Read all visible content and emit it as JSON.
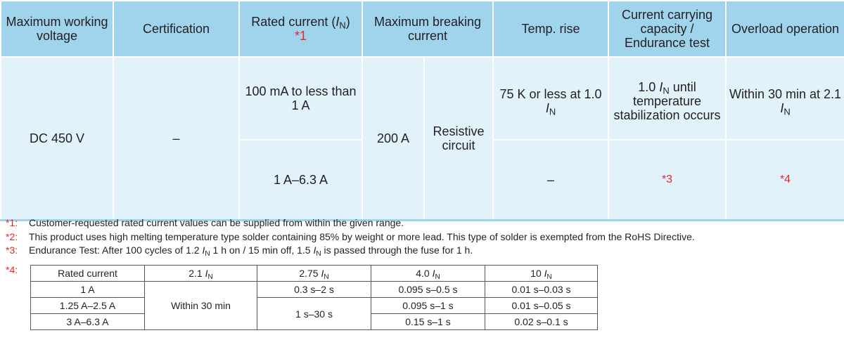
{
  "headers": {
    "max_voltage": "Maximum working voltage",
    "certification": "Certification",
    "rated_current": "Rated current (",
    "rated_current_sym": "I",
    "rated_current_sub": "N",
    "rated_current_close": ")",
    "rated_current_note": "*1",
    "breaking": "Maximum breaking current",
    "temp_rise": "Temp. rise",
    "capacity": "Current carrying capacity / Endurance test",
    "overload": "Overload operation"
  },
  "body": {
    "voltage": "DC 450 V",
    "certification": "–",
    "rated_range_1": "100 mA to less than 1 A",
    "rated_range_2": "1 A–6.3 A",
    "breaking_value": "200 A",
    "breaking_circuit": "Resistive circuit",
    "temp_rise_1_prefix": "75 K or less at 1.0 ",
    "temp_rise_2": "–",
    "capacity_1_value": "1.0 ",
    "capacity_1_rest": " until temperature stabilization occurs",
    "capacity_2": "*3",
    "overload_1_prefix": "Within 30 min at 2.1 ",
    "overload_2": "*4",
    "sym_I": "I",
    "sym_N": "N"
  },
  "notes": [
    {
      "mark": "*1:",
      "text": "Customer-requested rated current values can be supplied from within the given range."
    },
    {
      "mark": "*2:",
      "text": "This product uses high melting temperature type solder containing 85% by weight or more lead. This type of solder is exempted from the RoHS Directive."
    },
    {
      "mark": "*3:",
      "text_a": "Endurance Test: After 100 cycles of 1.2 ",
      "text_b": " 1 h on / 15 min off, 1.5 ",
      "text_c": " is passed through the fuse for 1 h."
    }
  ],
  "note4_mark": "*4:",
  "overload_table": {
    "h_rated": "Rated current",
    "h_col1": "2.1 ",
    "h_col2": "2.75 ",
    "h_col3": "4.0 ",
    "h_col4": "10 ",
    "rows": [
      {
        "rated": "1 A",
        "c2": "0.3 s–2 s",
        "c3": "0.095 s–0.5 s",
        "c4": "0.01 s–0.03 s"
      },
      {
        "rated": "1.25 A–2.5 A",
        "c3": "0.095 s–1 s",
        "c4": "0.01 s–0.05 s"
      },
      {
        "rated": "3 A–6.3 A",
        "c3": "0.15 s–1 s",
        "c4": "0.02 s–0.1 s"
      }
    ],
    "merged_c1": "Within 30 min",
    "merged_c2": "1 s–30 s"
  }
}
